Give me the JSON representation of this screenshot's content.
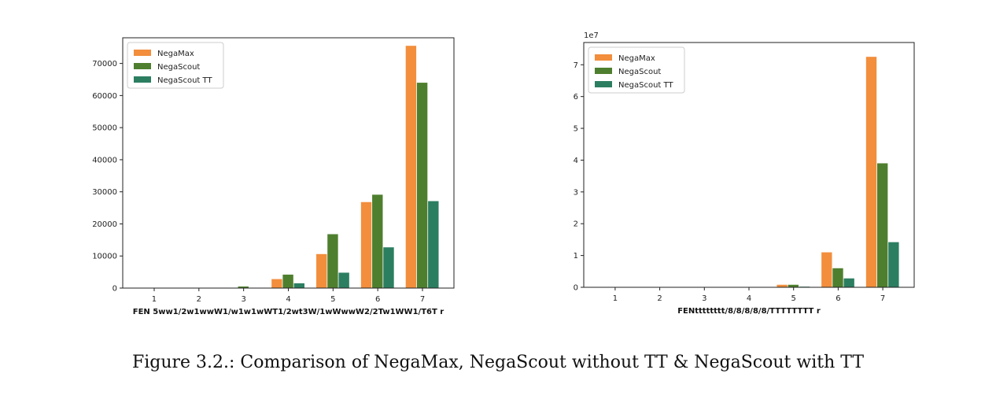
{
  "caption": "Figure 3.2.: Comparison of NegaMax, NegaScout without TT & NegaScout with TT",
  "colors": {
    "NegaMax": "#f28e3c",
    "NegaScout": "#4e7f2e",
    "NegaScout TT": "#2c7e61"
  },
  "chart_data": [
    {
      "type": "bar",
      "categories": [
        "1",
        "2",
        "3",
        "4",
        "5",
        "6",
        "7"
      ],
      "series": [
        {
          "name": "NegaMax",
          "values": [
            0,
            0,
            100,
            2800,
            10600,
            26800,
            75500
          ]
        },
        {
          "name": "NegaScout",
          "values": [
            0,
            0,
            500,
            4200,
            16800,
            29100,
            64000
          ]
        },
        {
          "name": "NegaScout TT",
          "values": [
            0,
            0,
            100,
            1500,
            4800,
            12700,
            27100
          ]
        }
      ],
      "xlabel": "FEN 5ww1/2w1wwW1/w1w1wWT1/2wt3W/1wWwwW2/2Tw1WW1/T6T r",
      "ylabel": "",
      "ylim": [
        0,
        78000
      ],
      "yticks": [
        0,
        10000,
        20000,
        30000,
        40000,
        50000,
        60000,
        70000
      ],
      "ytick_labels": [
        "0",
        "10000",
        "20000",
        "30000",
        "40000",
        "50000",
        "60000",
        "70000"
      ],
      "scale_label": "",
      "legend": "top-left",
      "grid": false
    },
    {
      "type": "bar",
      "categories": [
        "1",
        "2",
        "3",
        "4",
        "5",
        "6",
        "7"
      ],
      "series": [
        {
          "name": "NegaMax",
          "values": [
            0,
            0,
            0,
            0,
            0.08,
            1.1,
            7.25
          ]
        },
        {
          "name": "NegaScout",
          "values": [
            0,
            0,
            0,
            0,
            0.08,
            0.6,
            3.9
          ]
        },
        {
          "name": "NegaScout TT",
          "values": [
            0,
            0,
            0,
            0,
            0.02,
            0.28,
            1.42
          ]
        }
      ],
      "xlabel": "FENtttttttt/8/8/8/8/8/TTTTTTTT r",
      "ylabel": "",
      "ylim": [
        0,
        7.7
      ],
      "yticks": [
        0,
        1,
        2,
        3,
        4,
        5,
        6,
        7
      ],
      "ytick_labels": [
        "0",
        "1",
        "2",
        "3",
        "4",
        "5",
        "6",
        "7"
      ],
      "scale_label": "1e7",
      "legend": "top-left",
      "grid": false
    }
  ]
}
